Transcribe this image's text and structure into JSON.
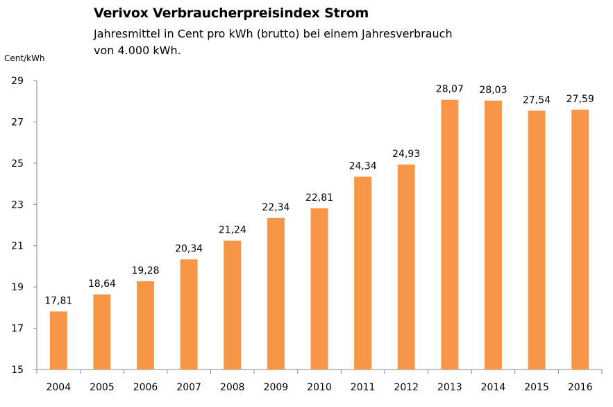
{
  "chart_data": {
    "type": "bar",
    "title": "Verivox Verbraucherpreisindex Strom",
    "subtitle_lines": [
      "Jahresmittel in Cent pro kWh (brutto) bei einem Jahresverbrauch",
      "von 4.000 kWh."
    ],
    "xlabel": "",
    "ylabel": "Cent/kWh",
    "ylim": [
      15,
      29
    ],
    "yticks": [
      15,
      17,
      19,
      21,
      23,
      25,
      27,
      29
    ],
    "grid": false,
    "legend": "none",
    "bar_color": "#F79646",
    "categories": [
      "2004",
      "2005",
      "2006",
      "2007",
      "2008",
      "2009",
      "2010",
      "2011",
      "2012",
      "2013",
      "2014",
      "2015",
      "2016"
    ],
    "values": [
      17.81,
      18.64,
      19.28,
      20.34,
      21.24,
      22.34,
      22.81,
      24.34,
      24.93,
      28.07,
      28.03,
      27.54,
      27.59
    ],
    "data_labels": [
      "17,81",
      "18,64",
      "19,28",
      "20,34",
      "21,24",
      "22,34",
      "22,81",
      "24,34",
      "24,93",
      "28,07",
      "28,03",
      "27,54",
      "27,59"
    ]
  }
}
